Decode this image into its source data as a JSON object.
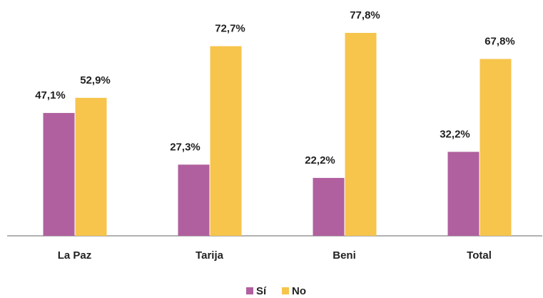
{
  "chart_data": {
    "type": "bar",
    "categories": [
      "La Paz",
      "Tarija",
      "Beni",
      "Total"
    ],
    "series": [
      {
        "name": "Sí",
        "color": "#b0609e",
        "values": [
          47.1,
          27.3,
          22.2,
          32.2
        ],
        "value_labels": [
          "47,1%",
          "27,3%",
          "22,2%",
          "32,2%"
        ]
      },
      {
        "name": "No",
        "color": "#f7c44c",
        "values": [
          52.9,
          72.7,
          77.8,
          67.8
        ],
        "value_labels": [
          "52,9%",
          "72,7%",
          "77,8%",
          "67,8%"
        ]
      }
    ]
  }
}
